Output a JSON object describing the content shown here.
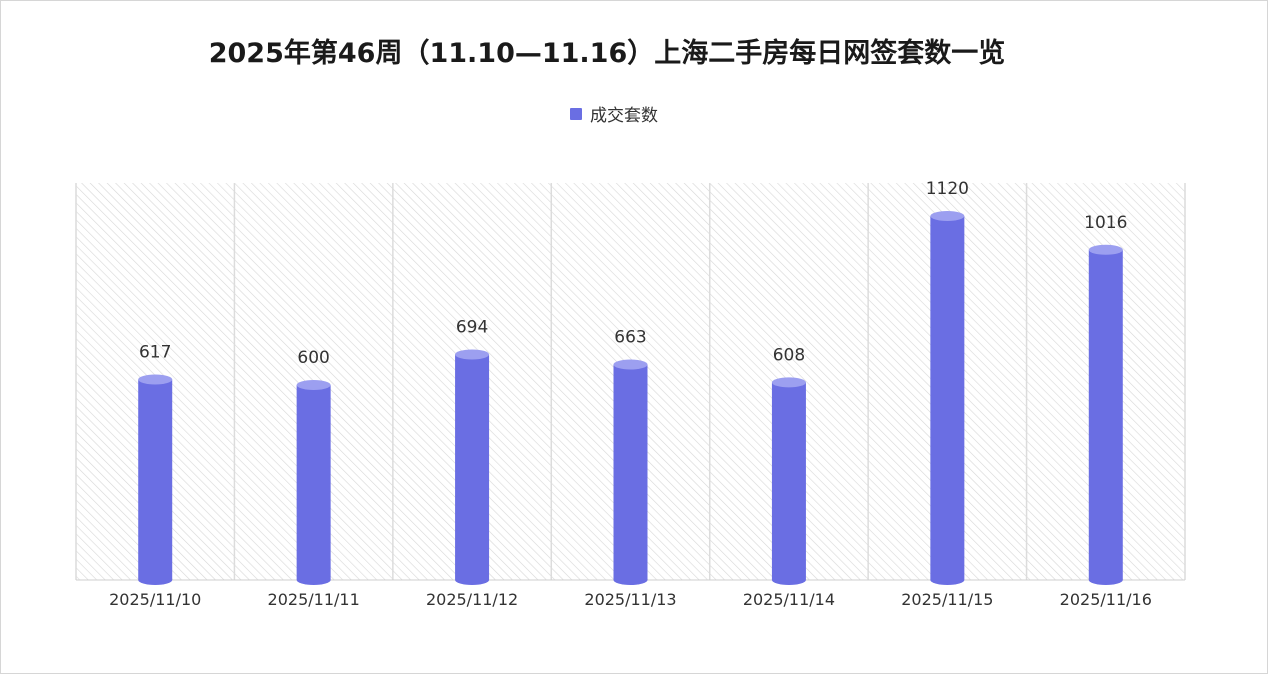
{
  "title": "2025年第46周（11.10—11.16）上海二手房每日网签套数一览",
  "legend": {
    "label": "成交套数",
    "color": "#6a6ee3"
  },
  "colors": {
    "bar": "#6a6ee3",
    "bar_top": "#9c9ff0",
    "hatch": "#d7d7d7",
    "column_divider": "#dcdcdc",
    "axis": "#cfcfcf"
  },
  "chart_data": {
    "type": "bar",
    "title": "2025年第46周（11.10—11.16）上海二手房每日网签套数一览",
    "categories": [
      "2025/11/10",
      "2025/11/11",
      "2025/11/12",
      "2025/11/13",
      "2025/11/14",
      "2025/11/15",
      "2025/11/16"
    ],
    "series": [
      {
        "name": "成交套数",
        "values": [
          617,
          600,
          694,
          663,
          608,
          1120,
          1016
        ]
      }
    ],
    "ylim": [
      0,
      1200
    ],
    "grid": false,
    "legend_position": "top-center",
    "xlabel": "",
    "ylabel": ""
  }
}
